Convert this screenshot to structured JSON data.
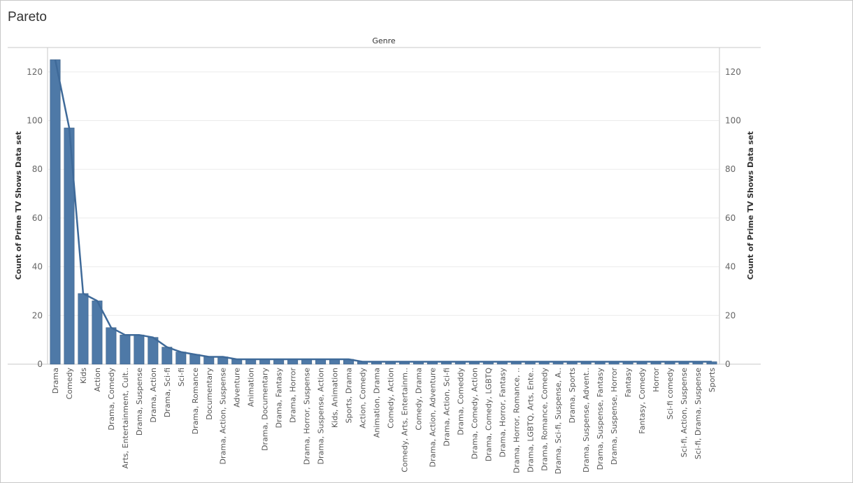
{
  "title": "Pareto",
  "chart_data": {
    "type": "bar",
    "header": "Genre",
    "ylabel": "Count of Prime TV Shows Data set",
    "y2label": "Count of Prime TV Shows Data set",
    "ylim": [
      0,
      130
    ],
    "yticks": [
      0,
      20,
      40,
      60,
      80,
      100,
      120
    ],
    "categories": [
      "Drama",
      "Comedy",
      "Kids",
      "Action",
      "Drama, Comedy",
      "Arts, Entertainment, Cult..",
      "Drama, Suspense",
      "Drama, Action",
      "Drama, Sci-fi",
      "Sci-fi",
      "Drama, Romance",
      "Documentary",
      "Drama, Action, Suspense",
      "Adventure",
      "Animation",
      "Drama, Documentary",
      "Drama, Fantasy",
      "Drama, Horror",
      "Drama, Horror, Suspense",
      "Drama, Suspense, Action",
      "Kids, Animation",
      "Sports, Drama",
      "Action, Comedy",
      "Animation, Drama",
      "Comedy, Action",
      "Comedy, Arts, Entertainm..",
      "Comedy, Drama",
      "Drama, Action, Adventure",
      "Drama, Action, Sci-fi",
      "Drama, Comeddy",
      "Drama, Comedy, Action",
      "Drama, Comedy, LGBTQ",
      "Drama, Horror, Fantasy",
      "Drama, Horror, Romance, ..",
      "Drama, LGBTQ, Arts, Ente..",
      "Drama, Romance, Comedy",
      "Drama, Sci-fi, Suspense, A..",
      "Drama, Sports",
      "Drama, Suspense, Advent..",
      "Drama, Suspense, Fantasy",
      "Drama, Suspense, Horror",
      "Fantasy",
      "Fantasy, Comedy",
      "Horror",
      "Sci-fi comedy",
      "Sci-fi, Action, Suspense",
      "Sci-fi, Drama, Suspense",
      "Sports"
    ],
    "series": [
      {
        "type": "bar",
        "values": [
          125,
          97,
          29,
          26,
          15,
          12,
          12,
          11,
          7,
          5,
          4,
          3,
          3,
          2,
          2,
          2,
          2,
          2,
          2,
          2,
          2,
          2,
          1,
          1,
          1,
          1,
          1,
          1,
          1,
          1,
          1,
          1,
          1,
          1,
          1,
          1,
          1,
          1,
          1,
          1,
          1,
          1,
          1,
          1,
          1,
          1,
          1,
          1
        ]
      },
      {
        "type": "line",
        "values": [
          125,
          97,
          29,
          26,
          15,
          12,
          12,
          11,
          7,
          5,
          4,
          3,
          3,
          2,
          2,
          2,
          2,
          2,
          2,
          2,
          2,
          2,
          1,
          1,
          1,
          1,
          1,
          1,
          1,
          1,
          1,
          1,
          1,
          1,
          1,
          1,
          1,
          1,
          1,
          1,
          1,
          1,
          1,
          1,
          1,
          1,
          1,
          1
        ]
      }
    ],
    "colors": {
      "bar": "#4e79a7",
      "bar_stroke": "#3b5f85",
      "line": "#3f6a99",
      "grid": "#ebebeb",
      "axis": "#c8c8c8"
    },
    "grid": true,
    "legend": "none"
  }
}
